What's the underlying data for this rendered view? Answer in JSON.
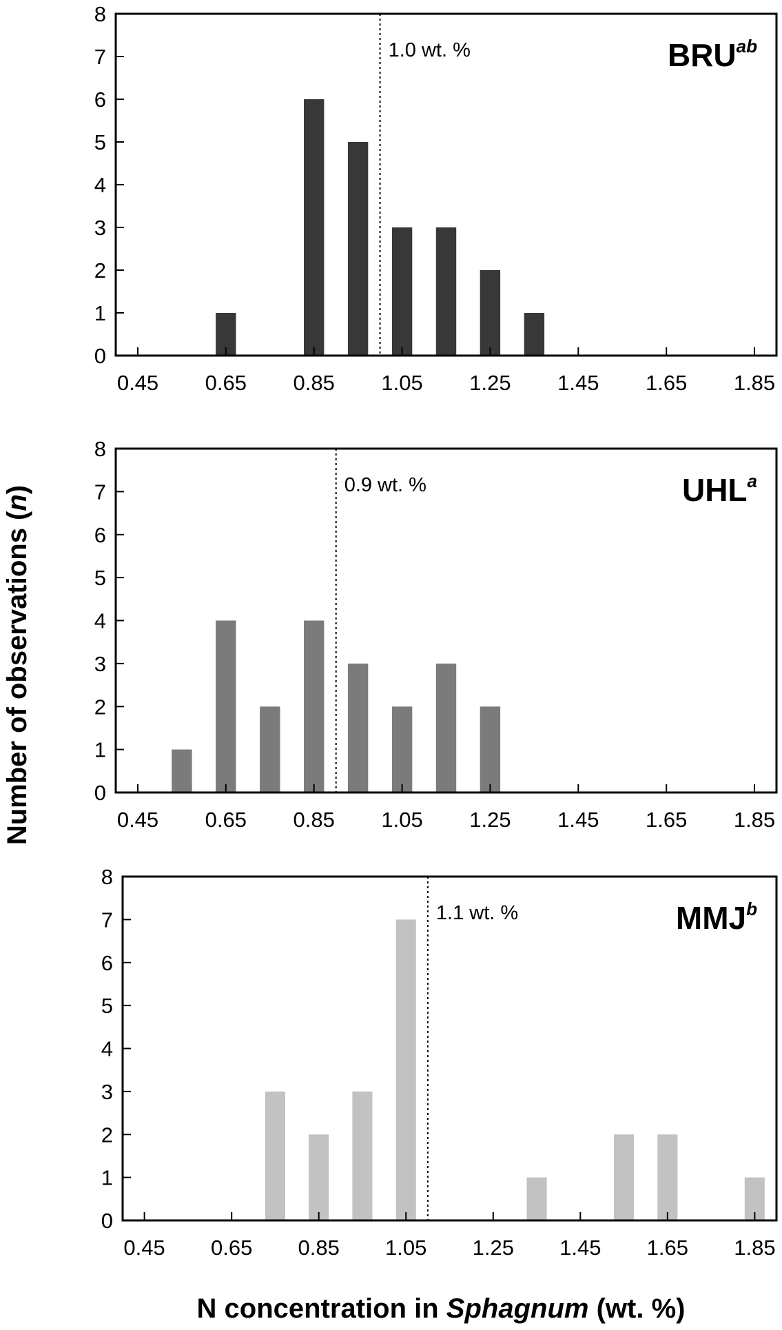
{
  "figure": {
    "ylabel_prefix": "Number of observations (",
    "ylabel_var": "n",
    "ylabel_suffix": ")",
    "xlabel_prefix": "N concentration in ",
    "xlabel_italic": "Sphagnum",
    "xlabel_suffix": " (wt. %)"
  },
  "chart_data": [
    {
      "type": "bar",
      "site": "BRU",
      "superscript": "ab",
      "threshold_value": 1.0,
      "threshold_label": "1.0 wt. %",
      "bar_color": "#383838",
      "x": [
        0.65,
        0.85,
        0.95,
        1.05,
        1.15,
        1.25,
        1.35
      ],
      "values": [
        1,
        6,
        5,
        3,
        3,
        2,
        1
      ],
      "xticks": [
        "0.45",
        "0.65",
        "0.85",
        "1.05",
        "1.25",
        "1.45",
        "1.65",
        "1.85"
      ],
      "yticks": [
        "0",
        "1",
        "2",
        "3",
        "4",
        "5",
        "6",
        "7",
        "8"
      ],
      "xlim": [
        0.4,
        1.9
      ],
      "ylim": [
        0,
        8
      ]
    },
    {
      "type": "bar",
      "site": "UHL",
      "superscript": "a",
      "threshold_value": 0.9,
      "threshold_label": "0.9 wt. %",
      "bar_color": "#7b7b7b",
      "x": [
        0.55,
        0.65,
        0.75,
        0.85,
        0.95,
        1.05,
        1.15,
        1.25
      ],
      "values": [
        1,
        4,
        2,
        4,
        3,
        2,
        3,
        2
      ],
      "xticks": [
        "0.45",
        "0.65",
        "0.85",
        "1.05",
        "1.25",
        "1.45",
        "1.65",
        "1.85"
      ],
      "yticks": [
        "0",
        "1",
        "2",
        "3",
        "4",
        "5",
        "6",
        "7",
        "8"
      ],
      "xlim": [
        0.4,
        1.9
      ],
      "ylim": [
        0,
        8
      ]
    },
    {
      "type": "bar",
      "site": "MMJ",
      "superscript": "b",
      "threshold_value": 1.1,
      "threshold_label": "1.1 wt. %",
      "bar_color": "#c2c2c2",
      "x": [
        0.75,
        0.85,
        0.95,
        1.05,
        1.35,
        1.55,
        1.65,
        1.85
      ],
      "values": [
        3,
        2,
        3,
        7,
        1,
        2,
        2,
        1
      ],
      "xticks": [
        "0.45",
        "0.65",
        "0.85",
        "1.05",
        "1.25",
        "1.45",
        "1.65",
        "1.85"
      ],
      "yticks": [
        "0",
        "1",
        "2",
        "3",
        "4",
        "5",
        "6",
        "7",
        "8"
      ],
      "xlim": [
        0.4,
        1.9
      ],
      "ylim": [
        0,
        8
      ]
    }
  ]
}
